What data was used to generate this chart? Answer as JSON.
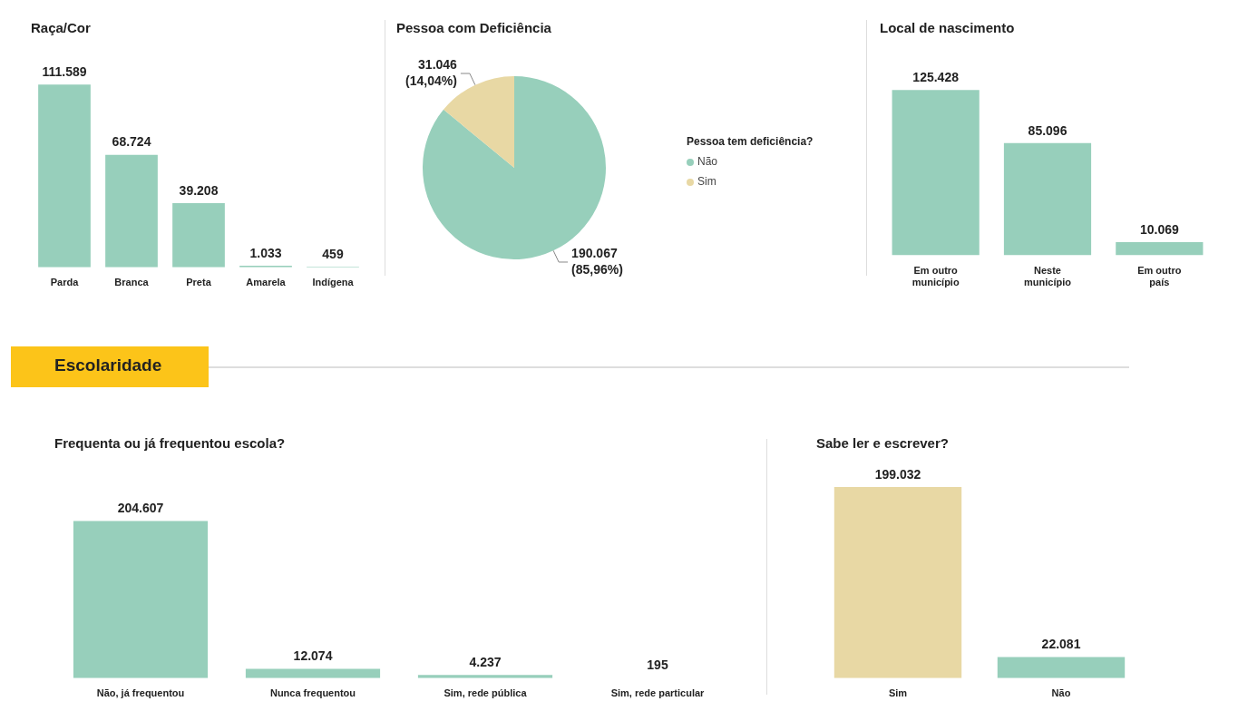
{
  "chart_data": [
    {
      "type": "bar",
      "title": "Raça/Cor",
      "categories": [
        "Parda",
        "Branca",
        "Preta",
        "Amarela",
        "Indígena"
      ],
      "values": [
        111589,
        68724,
        39208,
        1033,
        459
      ],
      "value_labels": [
        "111.589",
        "68.724",
        "39.208",
        "1.033",
        "459"
      ],
      "color": "#97cfbb"
    },
    {
      "type": "pie",
      "title": "Pessoa com Deficiência",
      "categories": [
        "Não",
        "Sim"
      ],
      "values": [
        190067,
        31046
      ],
      "value_labels": [
        "190.067 (85,96%)",
        "31.046 (14,04%)"
      ],
      "colors": [
        "#97cfbb",
        "#e8d8a4"
      ],
      "legend": "right",
      "legend_title": "Pessoa tem deficiência?"
    },
    {
      "type": "bar",
      "title": "Local de nascimento",
      "categories": [
        "Em outro município",
        "Neste município",
        "Em outro país"
      ],
      "values": [
        125428,
        85096,
        10069
      ],
      "value_labels": [
        "125.428",
        "85.096",
        "10.069"
      ],
      "color": "#97cfbb"
    },
    {
      "type": "other",
      "title": "Escolaridade"
    },
    {
      "type": "bar",
      "title": "Frequenta ou já frequentou escola?",
      "categories": [
        "Não, já frequentou",
        "Nunca frequentou",
        "Sim, rede pública",
        "Sim, rede particular"
      ],
      "values": [
        204607,
        12074,
        4237,
        195
      ],
      "value_labels": [
        "204.607",
        "12.074",
        "4.237",
        "195"
      ],
      "color": "#97cfbb"
    },
    {
      "type": "bar",
      "title": "Sabe ler e escrever?",
      "categories": [
        "Sim",
        "Não"
      ],
      "values": [
        199032,
        22081
      ],
      "value_labels": [
        "199.032",
        "22.081"
      ],
      "colors": [
        "#e8d8a4",
        "#97cfbb"
      ]
    }
  ]
}
